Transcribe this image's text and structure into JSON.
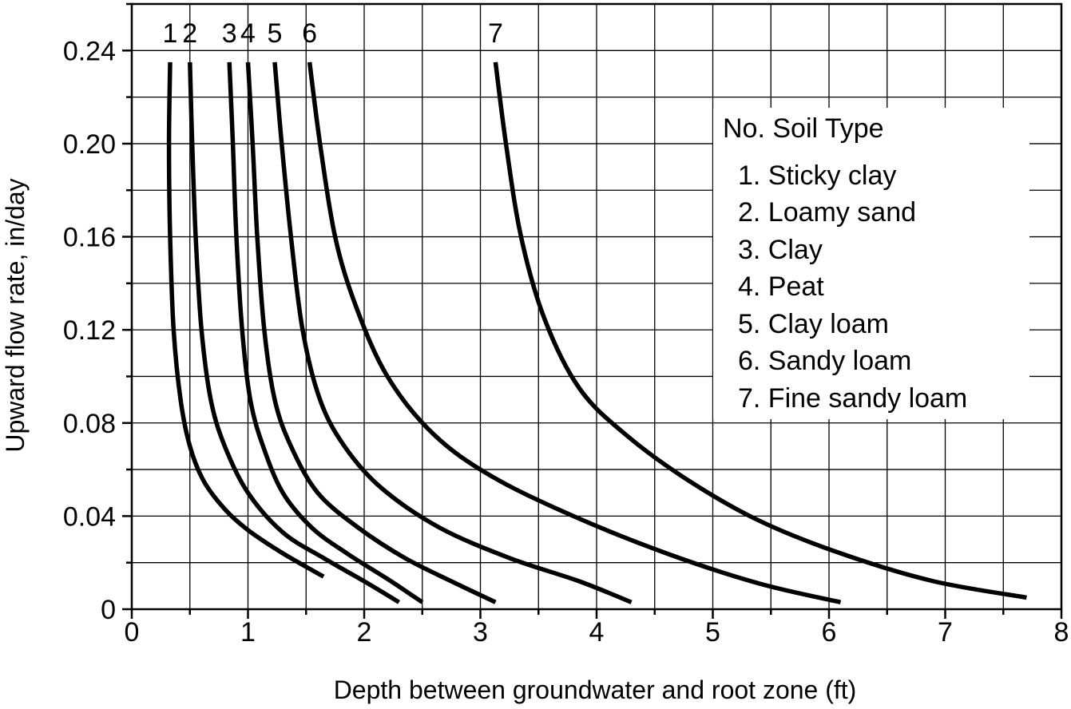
{
  "chart_data": {
    "type": "line",
    "xlabel": "Depth between groundwater and root zone (ft)",
    "ylabel": "Upward flow rate, in/day",
    "xlim": [
      0,
      8
    ],
    "ylim": [
      0,
      0.26
    ],
    "x_ticks": [
      "0",
      "1",
      "2",
      "3",
      "4",
      "5",
      "6",
      "7",
      "8"
    ],
    "y_ticks": [
      "0",
      "0.04",
      "0.08",
      "0.12",
      "0.16",
      "0.20",
      "0.24"
    ],
    "grid": true,
    "legend": {
      "title": "No. Soil Type",
      "entries": [
        "1. Sticky clay",
        "2. Loamy sand",
        "3. Clay",
        "4. Peat",
        "5. Clay loam",
        "6. Sandy loam",
        "7. Fine sandy loam"
      ],
      "placement": "right"
    },
    "series": [
      {
        "label": "1",
        "x": [
          0.33,
          0.32,
          0.33,
          0.36,
          0.42,
          0.5,
          0.62,
          0.8,
          1.0,
          1.3,
          1.65
        ],
        "y": [
          0.235,
          0.2,
          0.16,
          0.12,
          0.09,
          0.07,
          0.055,
          0.043,
          0.034,
          0.024,
          0.014
        ]
      },
      {
        "label": "2",
        "x": [
          0.5,
          0.52,
          0.55,
          0.6,
          0.68,
          0.8,
          1.0,
          1.3,
          1.65,
          2.0,
          2.3
        ],
        "y": [
          0.235,
          0.2,
          0.16,
          0.12,
          0.09,
          0.07,
          0.05,
          0.033,
          0.022,
          0.012,
          0.003
        ]
      },
      {
        "label": "3",
        "x": [
          0.84,
          0.87,
          0.9,
          0.95,
          1.02,
          1.13,
          1.3,
          1.55,
          1.85,
          2.2,
          2.5
        ],
        "y": [
          0.235,
          0.2,
          0.16,
          0.12,
          0.09,
          0.07,
          0.05,
          0.035,
          0.024,
          0.013,
          0.003
        ]
      },
      {
        "label": "4",
        "x": [
          1.0,
          1.04,
          1.08,
          1.14,
          1.23,
          1.37,
          1.6,
          1.95,
          2.35,
          2.75,
          3.13
        ],
        "y": [
          0.235,
          0.2,
          0.16,
          0.12,
          0.09,
          0.07,
          0.05,
          0.035,
          0.022,
          0.012,
          0.003
        ]
      },
      {
        "label": "5",
        "x": [
          1.23,
          1.29,
          1.37,
          1.47,
          1.62,
          1.83,
          2.15,
          2.65,
          3.25,
          3.85,
          4.3
        ],
        "y": [
          0.235,
          0.2,
          0.16,
          0.12,
          0.09,
          0.07,
          0.052,
          0.035,
          0.022,
          0.012,
          0.003
        ]
      },
      {
        "label": "6",
        "x": [
          1.53,
          1.62,
          1.75,
          1.93,
          2.2,
          2.6,
          3.1,
          3.8,
          4.6,
          5.4,
          6.1
        ],
        "y": [
          0.235,
          0.2,
          0.16,
          0.13,
          0.1,
          0.075,
          0.057,
          0.04,
          0.024,
          0.011,
          0.003
        ]
      },
      {
        "label": "7",
        "x": [
          3.13,
          3.22,
          3.35,
          3.55,
          3.85,
          4.25,
          4.8,
          5.4,
          6.1,
          6.9,
          7.7
        ],
        "y": [
          0.235,
          0.2,
          0.16,
          0.125,
          0.095,
          0.075,
          0.055,
          0.038,
          0.024,
          0.012,
          0.005
        ]
      }
    ]
  }
}
